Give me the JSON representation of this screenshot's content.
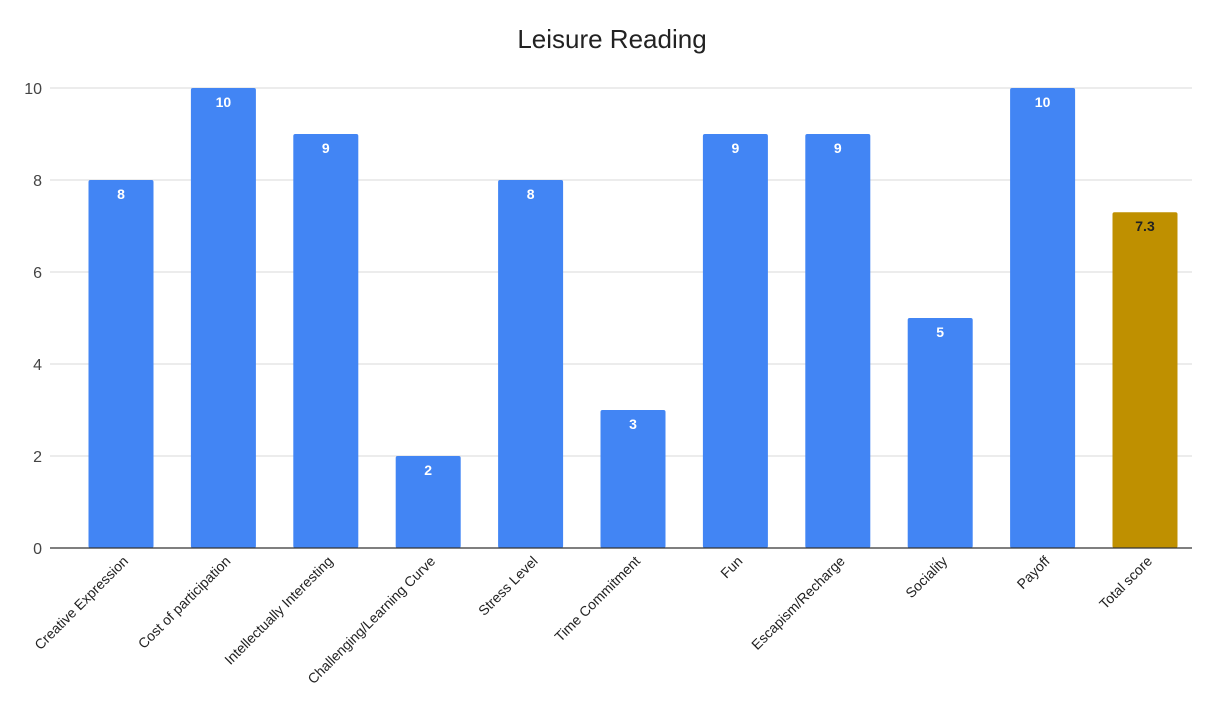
{
  "chart_data": {
    "type": "bar",
    "title": "Leisure Reading",
    "xlabel": "",
    "ylabel": "",
    "ylim": [
      0,
      10
    ],
    "yticks": [
      0,
      2,
      4,
      6,
      8,
      10
    ],
    "grid": true,
    "legend": "none",
    "categories": [
      "Creative Expression",
      "Cost of participation",
      "Intellectually Interesting",
      "Challenging/Learning Curve",
      "Stress Level",
      "Time Commitment",
      "Fun",
      "Escapism/Recharge",
      "Sociality",
      "Payoff",
      "Total score"
    ],
    "values": [
      8,
      10,
      9,
      2,
      8,
      3,
      9,
      9,
      5,
      10,
      7.3
    ],
    "data_labels": [
      "8",
      "10",
      "9",
      "2",
      "8",
      "3",
      "9",
      "9",
      "5",
      "10",
      "7.3"
    ],
    "colors": {
      "default_bar": "#4285f4",
      "highlight_bar": "#bf9000",
      "label_on_default": "#ffffff",
      "label_on_highlight": "#222222",
      "gridline": "#d9d9d9",
      "axis": "#333333"
    },
    "highlight_index": 10
  }
}
